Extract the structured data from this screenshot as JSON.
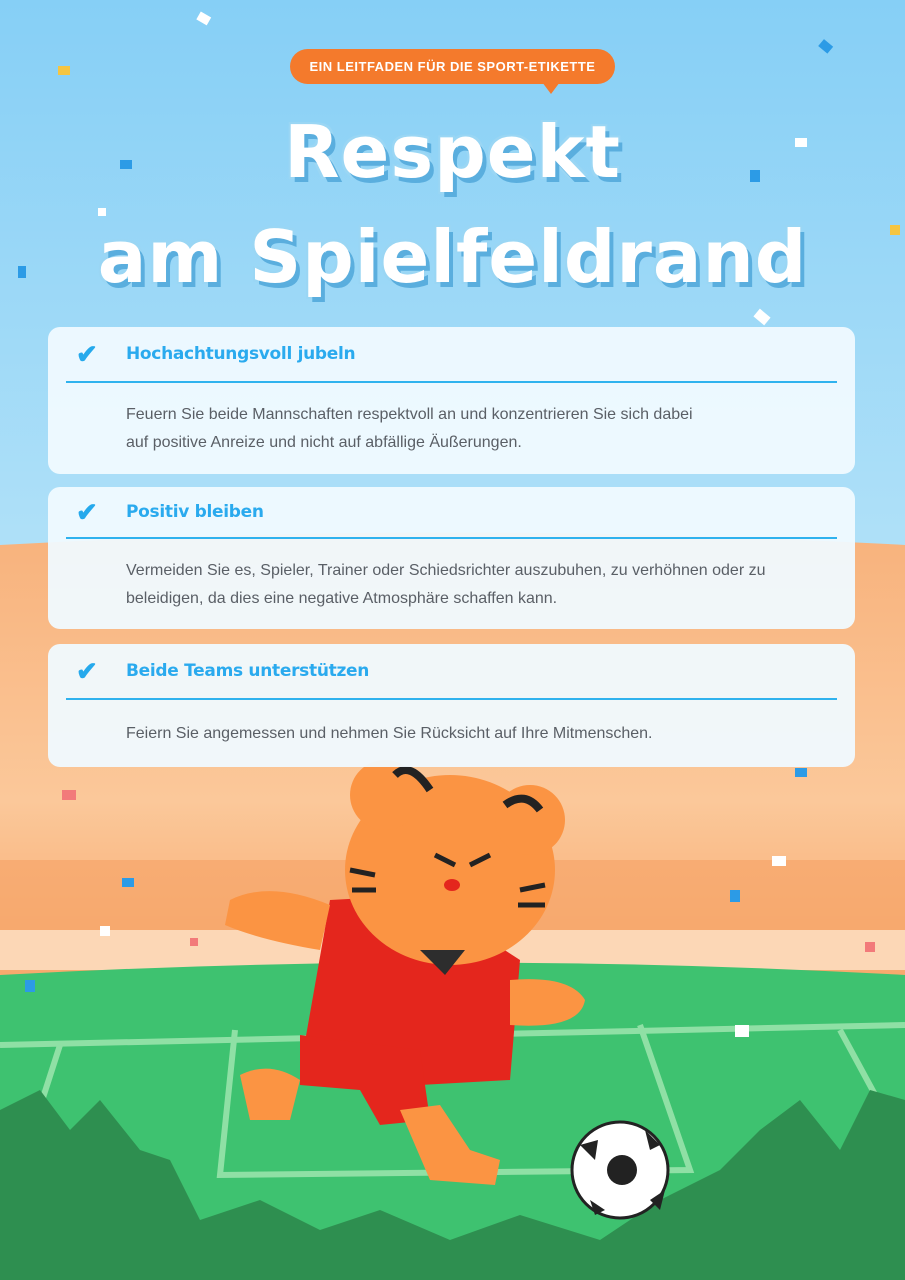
{
  "badge": "EIN LEITFADEN FÜR DIE SPORT-ETIKETTE",
  "title": {
    "line1": "Respekt",
    "line2": "am Spielfeldrand"
  },
  "cards": [
    {
      "icon": "check-icon",
      "heading": "Hochachtungsvoll jubeln",
      "body": "Feuern Sie beide Mannschaften respektvoll an und konzentrieren Sie sich dabei auf positive Anreize und nicht auf abfällige Äußerungen."
    },
    {
      "icon": "check-icon",
      "heading": "Positiv bleiben",
      "body": "Vermeiden Sie es, Spieler, Trainer oder Schiedsrichter auszubuhen, zu verhöhnen oder zu beleidigen, da dies eine negative Atmosphäre schaffen kann."
    },
    {
      "icon": "check-icon",
      "heading": "Beide Teams unterstützen",
      "body": "Feiern Sie angemessen und nehmen Sie Rücksicht auf Ihre Mitmenschen."
    }
  ],
  "colors": {
    "accent": "#2aaaee",
    "badge": "#f47a2c",
    "sky": "#8fd3f7",
    "stadium": "#f9b57e",
    "field": "#3cc36e"
  }
}
